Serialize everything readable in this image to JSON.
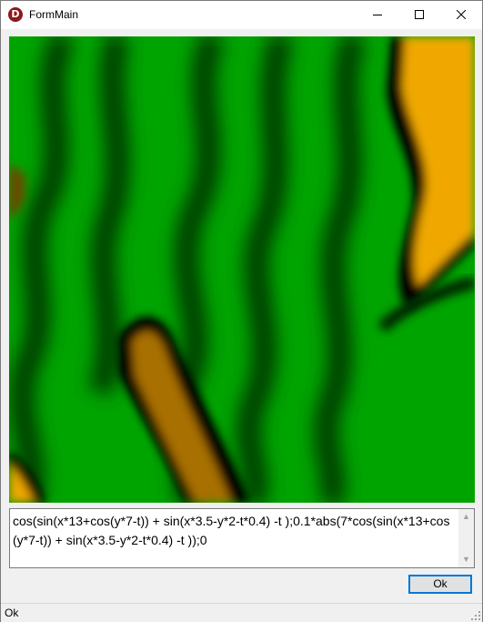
{
  "window": {
    "title": "FormMain",
    "app_icon_letter": "D",
    "app_icon": "delphi-app-icon",
    "controls": {
      "minimize": "minimize-icon",
      "maximize": "maximize-icon",
      "close": "close-icon"
    }
  },
  "render": {
    "description_colors": {
      "high": "#f0a800",
      "mid": "#000000",
      "low": "#00a000"
    }
  },
  "formula": {
    "value": "cos(sin(x*13+cos(y*7-t)) + sin(x*3.5-y*2-t*0.4) -t );0.1*abs(7*cos(sin(x*13+cos(y*7-t)) + sin(x*3.5-y*2-t*0.4) -t ));0"
  },
  "buttons": {
    "ok_label": "Ok"
  },
  "status": {
    "text": "Ok"
  }
}
